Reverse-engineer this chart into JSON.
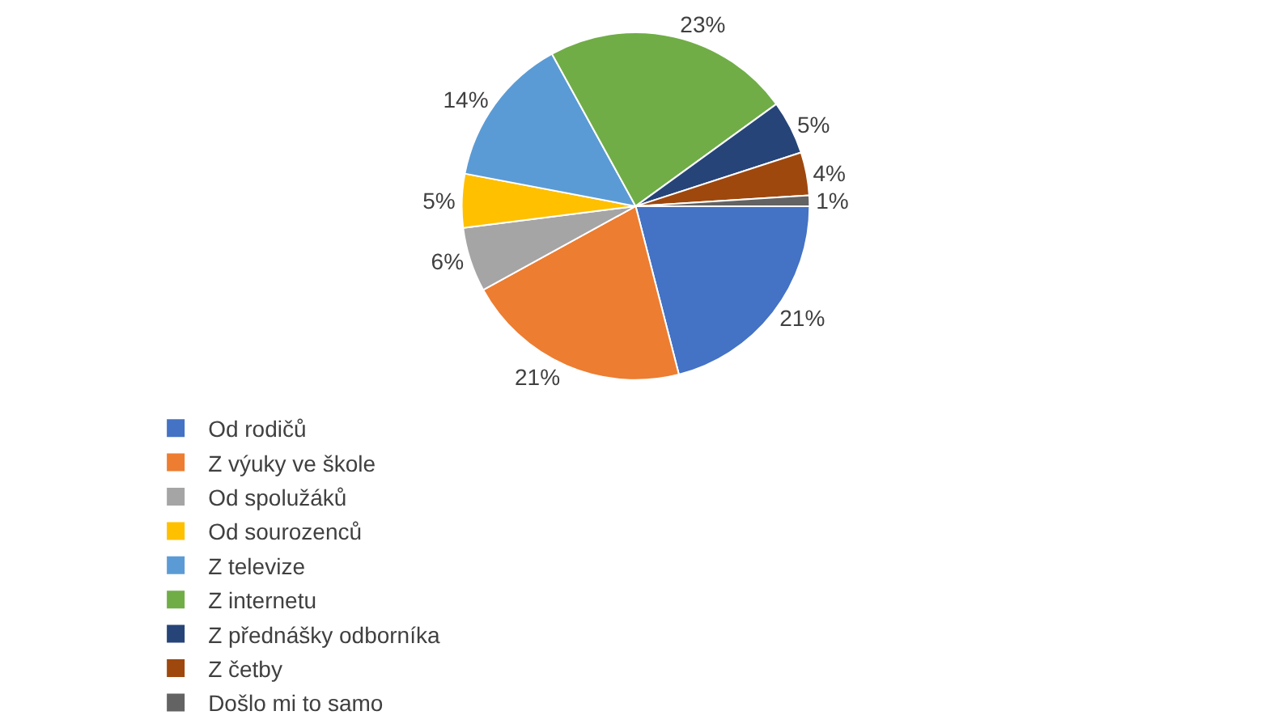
{
  "chart_data": {
    "type": "pie",
    "categories": [
      "Od rodičů",
      "Z výuky ve škole",
      "Od spolužáků",
      "Od sourozenců",
      "Z televize",
      "Z internetu",
      "Z přednášky odborníka",
      "Z četby",
      "Došlo mi to samo"
    ],
    "values": [
      21,
      21,
      6,
      5,
      14,
      23,
      5,
      4,
      1
    ],
    "colors": [
      "#4472c4",
      "#ed7d31",
      "#a5a5a5",
      "#ffc000",
      "#5b9bd5",
      "#70ad47",
      "#264478",
      "#9e480e",
      "#636363"
    ],
    "value_labels": [
      "21%",
      "21%",
      "6%",
      "5%",
      "14%",
      "23%",
      "5%",
      "4%",
      "1%"
    ],
    "legend": "bottom"
  }
}
